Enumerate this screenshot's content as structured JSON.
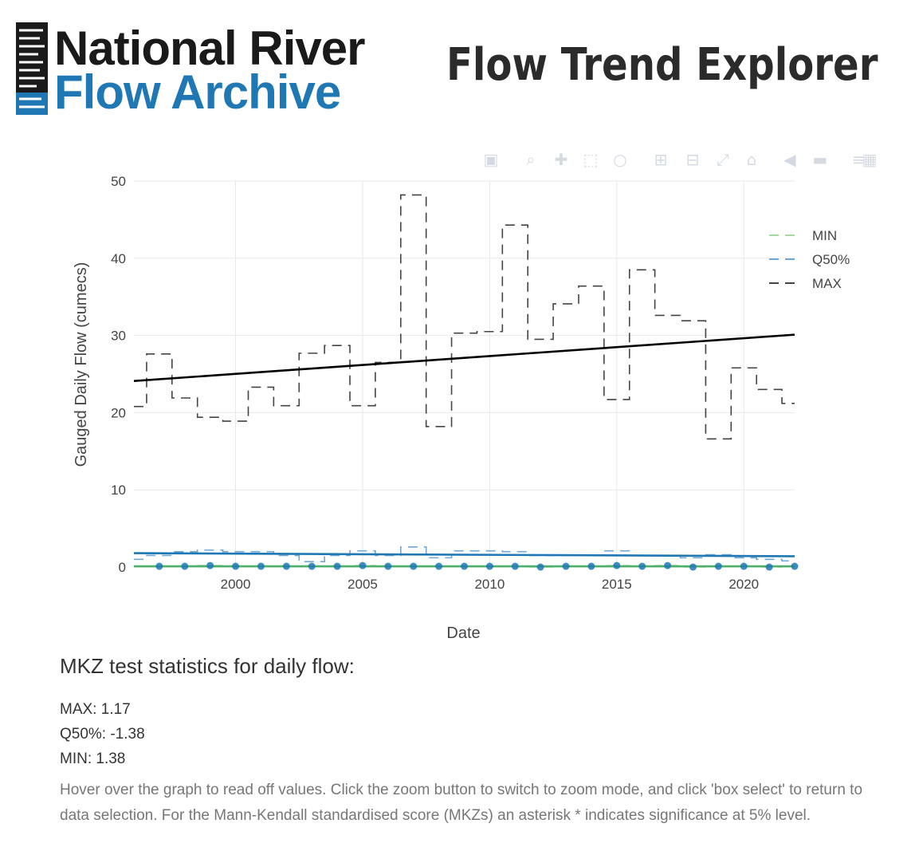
{
  "header": {
    "logo_line1": "National River",
    "logo_line2": "Flow Archive",
    "app_title": "Flow Trend Explorer"
  },
  "colors": {
    "min": "#a6dba0",
    "min_trend": "#4daf6a",
    "q50": "#6fa8d6",
    "q50_trend": "#1f78b4",
    "max": "#444444",
    "max_trend": "#000000",
    "logo_blue": "#1f78b4",
    "grid": "#e8e8e8"
  },
  "modebar": {
    "buttons": [
      "camera-icon",
      "zoom-icon",
      "pan-icon",
      "box-select-icon",
      "lasso-icon",
      "zoom-in-icon",
      "zoom-out-icon",
      "autoscale-icon",
      "reset-axes-icon",
      "spike-lines-icon",
      "hover-closest-icon",
      "hover-compare-icon",
      "plotly-logo-icon"
    ]
  },
  "chart_data": {
    "type": "line",
    "xlabel": "Date",
    "ylabel": "Gauged Daily Flow (cumecs)",
    "xlim": [
      1996,
      2022
    ],
    "ylim": [
      0,
      50
    ],
    "xticks": [
      2000,
      2005,
      2010,
      2015,
      2020
    ],
    "yticks": [
      0,
      10,
      20,
      30,
      40,
      50
    ],
    "grid": true,
    "legend_position": "top-right",
    "line_shape": "step",
    "x": [
      1996,
      1997,
      1998,
      1999,
      2000,
      2001,
      2002,
      2003,
      2004,
      2005,
      2006,
      2007,
      2008,
      2009,
      2010,
      2011,
      2012,
      2013,
      2014,
      2015,
      2016,
      2017,
      2018,
      2019,
      2020,
      2021,
      2022
    ],
    "series": [
      {
        "name": "MIN",
        "line": "dashed",
        "values": [
          0.1,
          0.1,
          0.1,
          0.2,
          0.1,
          0.1,
          0.1,
          0.1,
          0.1,
          0.2,
          0.1,
          0.1,
          0.1,
          0.1,
          0.1,
          0.1,
          0.0,
          0.1,
          0.1,
          0.2,
          0.1,
          0.2,
          0.0,
          0.1,
          0.1,
          0.0,
          0.1
        ],
        "trend": [
          0.1,
          0.1
        ]
      },
      {
        "name": "Q50%",
        "line": "dashed",
        "values": [
          1.0,
          1.5,
          2.0,
          2.2,
          2.0,
          2.0,
          1.5,
          0.7,
          1.5,
          2.1,
          1.5,
          2.6,
          1.2,
          2.1,
          2.1,
          2.0,
          1.5,
          1.5,
          1.5,
          2.1,
          1.5,
          1.5,
          1.2,
          1.6,
          1.2,
          1.0,
          0.8
        ],
        "trend": [
          1.8,
          1.4
        ]
      },
      {
        "name": "MAX",
        "line": "dashed",
        "values": [
          20.8,
          27.6,
          21.9,
          19.4,
          18.9,
          23.3,
          20.9,
          27.7,
          28.7,
          20.9,
          26.5,
          48.2,
          18.2,
          30.3,
          30.5,
          44.3,
          29.5,
          34.1,
          36.4,
          21.7,
          38.5,
          32.6,
          31.9,
          16.6,
          25.8,
          23.0,
          21.2
        ],
        "trend": [
          24.1,
          30.1
        ]
      }
    ]
  },
  "stats": {
    "title": "MKZ test statistics for daily flow:",
    "max_line": "MAX: 1.17",
    "q50_line": "Q50%: -1.38",
    "min_line": "MIN: 1.38",
    "help": "Hover over the graph to read off values. Click the zoom button to switch to zoom mode, and click 'box select' to return to data selection. For the Mann-Kendall standardised score (MKZs) an asterisk * indicates significance at 5% level."
  }
}
